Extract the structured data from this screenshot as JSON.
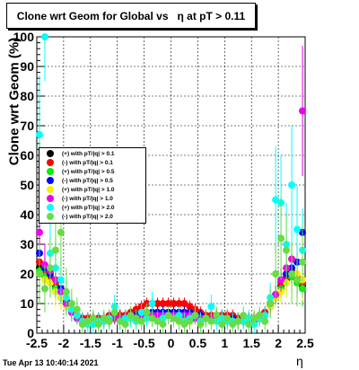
{
  "chart_data": {
    "type": "scatter",
    "title": "Clone wrt Geom for Global vs   η at pT > 0.11",
    "xlabel": "η",
    "ylabel": "Clone wrt Geom (%)",
    "xlim": [
      -2.5,
      2.5
    ],
    "ylim": [
      0,
      100
    ],
    "x_ticks": [
      "-2.5",
      "-2",
      "-1.5",
      "-1",
      "-0.5",
      "0",
      "0.5",
      "1",
      "1.5",
      "2",
      "2.5"
    ],
    "y_ticks": [
      "0",
      "10",
      "20",
      "30",
      "40",
      "50",
      "60",
      "70",
      "80",
      "90",
      "100"
    ],
    "grid": true,
    "legend_position": "left",
    "footer": "Tue Apr 13 10:40:14 2021",
    "x": [
      -2.45,
      -2.35,
      -2.25,
      -2.15,
      -2.05,
      -1.95,
      -1.85,
      -1.75,
      -1.65,
      -1.55,
      -1.45,
      -1.35,
      -1.25,
      -1.15,
      -1.05,
      -0.95,
      -0.85,
      -0.75,
      -0.65,
      -0.55,
      -0.45,
      -0.35,
      -0.25,
      -0.15,
      -0.05,
      0.05,
      0.15,
      0.25,
      0.35,
      0.45,
      0.55,
      0.65,
      0.75,
      0.85,
      0.95,
      1.05,
      1.15,
      1.25,
      1.35,
      1.45,
      1.55,
      1.65,
      1.75,
      1.85,
      1.95,
      2.05,
      2.15,
      2.25,
      2.35,
      2.45
    ],
    "series": [
      {
        "name": "(+) with pT/|q| > 0.1",
        "color": "#000000",
        "values": [
          22,
          20,
          18,
          16,
          14,
          11,
          8,
          6,
          5,
          5,
          5,
          5,
          5,
          5,
          6,
          6,
          6,
          6,
          6,
          7,
          7,
          7,
          7,
          7,
          7,
          7,
          7,
          7,
          7,
          6,
          6,
          6,
          6,
          6,
          6,
          6,
          5,
          5,
          5,
          5,
          5,
          6,
          7,
          10,
          13,
          16,
          18,
          20,
          18,
          16
        ],
        "errors": [
          5,
          5,
          4,
          4,
          4,
          3,
          3,
          2,
          2,
          2,
          2,
          2,
          2,
          2,
          2,
          2,
          2,
          2,
          2,
          2,
          2,
          2,
          2,
          2,
          2,
          2,
          2,
          2,
          2,
          2,
          2,
          2,
          2,
          2,
          2,
          2,
          2,
          2,
          2,
          2,
          2,
          2,
          2,
          3,
          3,
          4,
          4,
          4,
          5,
          5
        ]
      },
      {
        "name": "(-) with pT/|q| > 0.1",
        "color": "#ff0000",
        "values": [
          24,
          21,
          19,
          17,
          14,
          11,
          8,
          6,
          5,
          5,
          5,
          5,
          5,
          6,
          6,
          6,
          6,
          7,
          8,
          9,
          10,
          10,
          10,
          10,
          10,
          10,
          10,
          10,
          9,
          8,
          7,
          6,
          6,
          6,
          6,
          6,
          6,
          5,
          5,
          5,
          5,
          6,
          7,
          10,
          13,
          17,
          19,
          21,
          19,
          17
        ],
        "errors": [
          5,
          5,
          4,
          4,
          4,
          3,
          3,
          2,
          2,
          2,
          2,
          2,
          2,
          2,
          2,
          2,
          2,
          2,
          2,
          2,
          2,
          2,
          2,
          2,
          2,
          2,
          2,
          2,
          2,
          2,
          2,
          2,
          2,
          2,
          2,
          2,
          2,
          2,
          2,
          2,
          2,
          2,
          2,
          3,
          3,
          4,
          4,
          4,
          5,
          5
        ]
      },
      {
        "name": "(+) with pT/|q| > 0.5",
        "color": "#00ee00",
        "values": [
          21,
          19,
          17,
          15,
          12,
          10,
          7,
          5,
          4,
          4,
          4,
          4,
          5,
          5,
          5,
          5,
          5,
          5,
          5,
          6,
          6,
          6,
          6,
          6,
          6,
          6,
          6,
          6,
          6,
          5,
          5,
          5,
          5,
          5,
          5,
          5,
          5,
          4,
          4,
          4,
          4,
          5,
          6,
          9,
          12,
          15,
          17,
          19,
          17,
          15
        ],
        "errors": [
          6,
          5,
          5,
          4,
          4,
          3,
          3,
          2,
          2,
          2,
          2,
          2,
          2,
          2,
          2,
          2,
          2,
          2,
          2,
          2,
          2,
          2,
          2,
          2,
          2,
          2,
          2,
          2,
          2,
          2,
          2,
          2,
          2,
          2,
          2,
          2,
          2,
          2,
          2,
          2,
          2,
          2,
          2,
          3,
          3,
          4,
          4,
          5,
          5,
          6
        ]
      },
      {
        "name": "(-) with pT/|q| > 0.5",
        "color": "#0000ff",
        "values": [
          27,
          22,
          20,
          18,
          15,
          11,
          8,
          6,
          4,
          4,
          4,
          4,
          5,
          5,
          5,
          5,
          5,
          6,
          6,
          7,
          7,
          7,
          7,
          7,
          7,
          7,
          7,
          7,
          7,
          6,
          6,
          5,
          5,
          5,
          5,
          5,
          5,
          4,
          4,
          4,
          4,
          5,
          6,
          9,
          13,
          18,
          20,
          22,
          24,
          34
        ],
        "errors": [
          7,
          6,
          5,
          4,
          4,
          3,
          3,
          2,
          2,
          2,
          2,
          2,
          2,
          2,
          2,
          2,
          2,
          2,
          2,
          2,
          2,
          2,
          2,
          2,
          2,
          2,
          2,
          2,
          2,
          2,
          2,
          2,
          2,
          2,
          2,
          2,
          2,
          2,
          2,
          2,
          2,
          2,
          2,
          3,
          3,
          4,
          4,
          5,
          6,
          8
        ]
      },
      {
        "name": "(+) with pT/|q| > 1.0",
        "color": "#ffee00",
        "values": [
          20,
          18,
          17,
          14,
          12,
          9,
          7,
          5,
          4,
          4,
          4,
          4,
          4,
          4,
          5,
          5,
          5,
          5,
          5,
          5,
          5,
          6,
          6,
          6,
          6,
          6,
          6,
          5,
          5,
          5,
          5,
          5,
          5,
          5,
          5,
          4,
          4,
          4,
          4,
          4,
          4,
          5,
          6,
          9,
          12,
          14,
          17,
          25,
          20,
          18
        ],
        "errors": [
          7,
          6,
          5,
          5,
          4,
          3,
          3,
          2,
          2,
          2,
          2,
          2,
          2,
          2,
          2,
          2,
          2,
          2,
          2,
          2,
          2,
          2,
          2,
          2,
          2,
          2,
          2,
          2,
          2,
          2,
          2,
          2,
          2,
          2,
          2,
          2,
          2,
          2,
          2,
          2,
          2,
          2,
          2,
          3,
          3,
          4,
          5,
          6,
          6,
          7
        ]
      },
      {
        "name": "(-) with pT/|q| > 1.0",
        "color": "#ee00ee",
        "values": [
          34,
          23,
          21,
          18,
          14,
          10,
          7,
          5,
          4,
          4,
          4,
          4,
          4,
          4,
          5,
          5,
          5,
          5,
          5,
          5,
          6,
          6,
          6,
          6,
          6,
          6,
          6,
          6,
          6,
          5,
          5,
          5,
          5,
          5,
          4,
          4,
          4,
          4,
          4,
          4,
          4,
          5,
          6,
          10,
          13,
          18,
          22,
          25,
          18,
          75
        ],
        "errors": [
          9,
          7,
          6,
          5,
          4,
          3,
          3,
          2,
          2,
          2,
          2,
          2,
          2,
          2,
          2,
          2,
          2,
          2,
          2,
          2,
          2,
          2,
          2,
          2,
          2,
          2,
          2,
          2,
          2,
          2,
          2,
          2,
          2,
          2,
          2,
          2,
          2,
          2,
          2,
          2,
          2,
          2,
          2,
          3,
          3,
          4,
          5,
          6,
          6,
          22
        ]
      },
      {
        "name": "(+) with pT/|q| > 2.0",
        "color": "#00ffff",
        "values": [
          67,
          100,
          27,
          22,
          18,
          12,
          8,
          6,
          4,
          3,
          3,
          4,
          4,
          5,
          9,
          4,
          5,
          5,
          4,
          7,
          5,
          10,
          4,
          5,
          6,
          5,
          6,
          4,
          5,
          6,
          4,
          5,
          9,
          4,
          5,
          4,
          4,
          4,
          4,
          5,
          3,
          5,
          6,
          12,
          45,
          44,
          30,
          50,
          35,
          28
        ],
        "errors": [
          20,
          15,
          12,
          10,
          8,
          6,
          4,
          3,
          3,
          3,
          3,
          3,
          3,
          3,
          4,
          3,
          3,
          3,
          3,
          3,
          3,
          4,
          3,
          3,
          3,
          3,
          3,
          3,
          3,
          3,
          3,
          3,
          4,
          3,
          3,
          3,
          3,
          3,
          3,
          3,
          3,
          3,
          3,
          5,
          18,
          16,
          14,
          20,
          15,
          14
        ]
      },
      {
        "name": "(-) with pT/|q| > 2.0",
        "color": "#66dd44",
        "values": [
          20,
          15,
          22,
          28,
          34,
          14,
          10,
          8,
          3,
          4,
          5,
          3,
          5,
          4,
          7,
          4,
          3,
          6,
          5,
          4,
          7,
          5,
          4,
          3,
          6,
          5,
          4,
          3,
          4,
          6,
          3,
          5,
          4,
          6,
          3,
          5,
          3,
          4,
          6,
          3,
          5,
          6,
          4,
          10,
          20,
          32,
          28,
          20,
          18,
          24
        ],
        "errors": [
          10,
          8,
          10,
          12,
          14,
          8,
          5,
          4,
          3,
          3,
          3,
          3,
          3,
          3,
          3,
          3,
          3,
          3,
          3,
          3,
          3,
          3,
          3,
          3,
          3,
          3,
          3,
          3,
          3,
          3,
          3,
          3,
          3,
          3,
          3,
          3,
          3,
          3,
          3,
          3,
          3,
          3,
          3,
          5,
          10,
          14,
          12,
          10,
          9,
          12
        ]
      }
    ]
  }
}
